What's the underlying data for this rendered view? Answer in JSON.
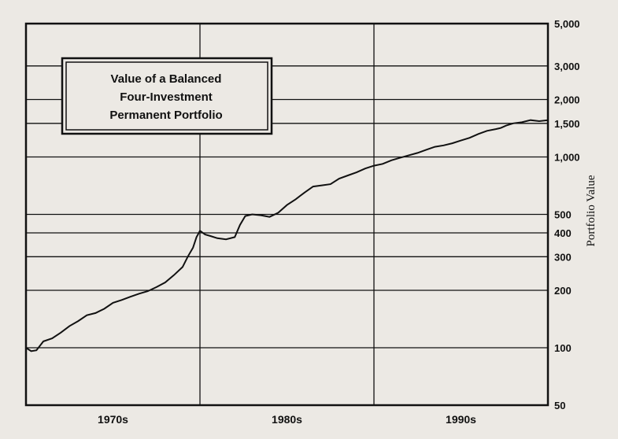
{
  "chart_data": {
    "type": "line",
    "title_lines": [
      "Value of a Balanced",
      "Four-Investment",
      "Permanent Portfolio"
    ],
    "ylabel": "Portfolio Value",
    "y_scale": "log",
    "ylim": [
      50,
      5000
    ],
    "y_ticks": [
      50,
      100,
      200,
      300,
      400,
      500,
      1000,
      1500,
      2000,
      3000,
      5000
    ],
    "y_tick_labels": [
      "50",
      "100",
      "200",
      "300",
      "400",
      "500",
      "1,000",
      "1,500",
      "2,000",
      "3,000",
      "5,000"
    ],
    "xlim": [
      1970,
      2000
    ],
    "x_tick_labels": [
      {
        "label": "1970s",
        "at": 1975
      },
      {
        "label": "1980s",
        "at": 1985
      },
      {
        "label": "1990s",
        "at": 1995
      }
    ],
    "x_gridlines": [
      1980,
      1990
    ],
    "legend_position": "top-left",
    "series": [
      {
        "x": [
          1970.0,
          1970.3,
          1970.6,
          1971.0,
          1971.5,
          1972.0,
          1972.5,
          1973.0,
          1973.5,
          1974.0,
          1974.5,
          1975.0,
          1975.5,
          1976.0,
          1976.5,
          1977.0,
          1977.5,
          1978.0,
          1978.5,
          1979.0,
          1979.3,
          1979.6,
          1979.8,
          1980.0,
          1980.3,
          1980.6,
          1981.0,
          1981.5,
          1982.0,
          1982.3,
          1982.6,
          1983.0,
          1983.5,
          1984.0,
          1984.5,
          1985.0,
          1985.5,
          1986.0,
          1986.5,
          1987.0,
          1987.5,
          1988.0,
          1988.5,
          1989.0,
          1989.5,
          1990.0,
          1990.5,
          1991.0,
          1991.5,
          1992.0,
          1992.5,
          1993.0,
          1993.5,
          1994.0,
          1994.5,
          1995.0,
          1995.5,
          1996.0,
          1996.5,
          1997.0,
          1997.3,
          1997.6,
          1998.0,
          1998.5,
          1999.0,
          1999.5,
          2000.0
        ],
        "y": [
          100,
          96,
          97,
          108,
          112,
          120,
          130,
          138,
          148,
          152,
          160,
          172,
          178,
          185,
          192,
          198,
          208,
          220,
          240,
          265,
          300,
          335,
          380,
          410,
          392,
          385,
          375,
          370,
          380,
          440,
          490,
          500,
          495,
          485,
          510,
          560,
          600,
          650,
          700,
          710,
          720,
          770,
          800,
          830,
          870,
          900,
          920,
          960,
          990,
          1020,
          1050,
          1090,
          1130,
          1150,
          1180,
          1220,
          1260,
          1320,
          1370,
          1400,
          1420,
          1460,
          1500,
          1520,
          1560,
          1540,
          1560
        ]
      }
    ]
  }
}
